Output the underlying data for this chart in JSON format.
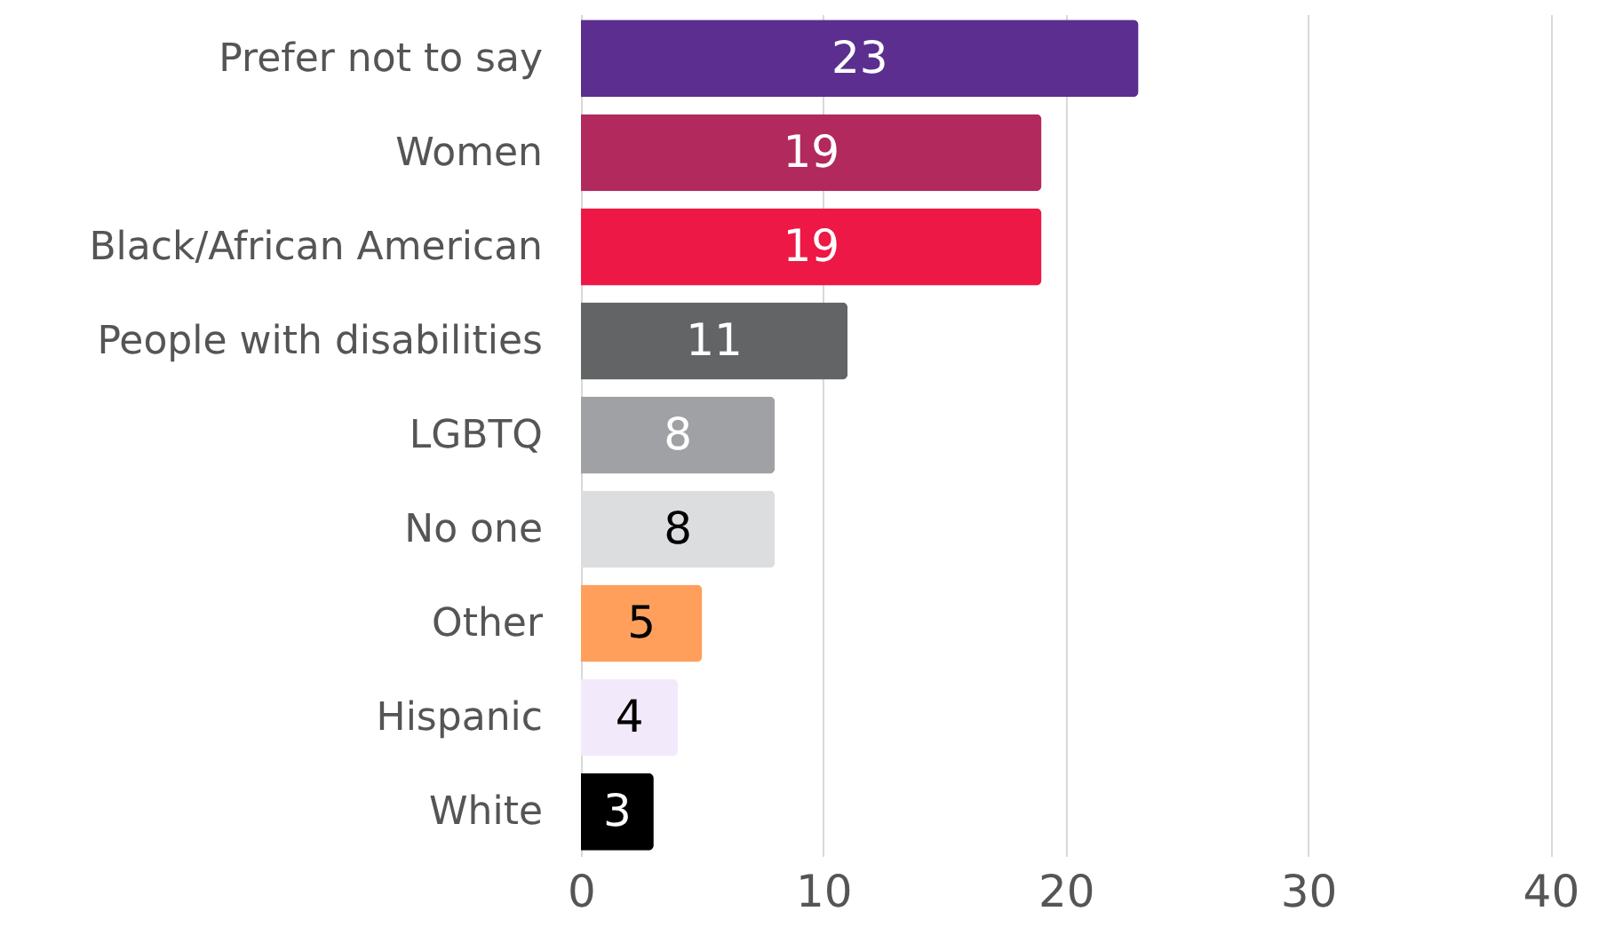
{
  "chart_data": {
    "type": "bar",
    "orientation": "horizontal",
    "categories": [
      "Prefer not to say",
      "Women",
      "Black/African American",
      "People with disabilities",
      "LGBTQ",
      "No one",
      "Other",
      "Hispanic",
      "White"
    ],
    "values": [
      23,
      19,
      19,
      11,
      8,
      8,
      5,
      4,
      3
    ],
    "colors": [
      "#5b2e90",
      "#b2295d",
      "#ed1845",
      "#636466",
      "#a0a1a4",
      "#dcdddf",
      "#ff9f5b",
      "#f2eafa",
      "#000000"
    ],
    "xlim": [
      0,
      42
    ],
    "xticks": [
      0,
      10,
      20,
      30,
      40
    ],
    "grid": "x",
    "data_labels": true
  }
}
